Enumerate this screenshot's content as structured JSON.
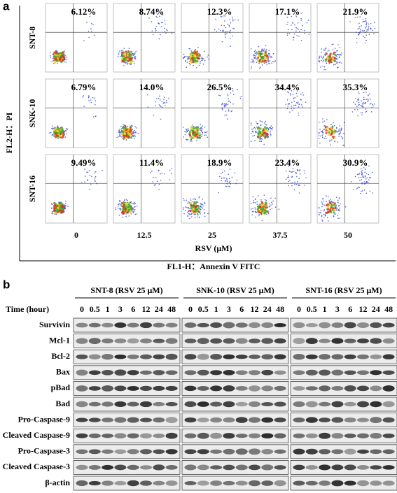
{
  "panel_a": {
    "label": "a",
    "y_axis_label": "FL2-H：PI",
    "x_axis_label": "FL1-H：Annexin V FITC",
    "concentration_label": "RSV (μM)",
    "concentrations": [
      "0",
      "12.5",
      "25",
      "37.5",
      "50"
    ],
    "rows": [
      {
        "cell_line": "SNT-8",
        "percentages": [
          "6.12%",
          "8.74%",
          "12.3%",
          "17.1%",
          "21.9%"
        ]
      },
      {
        "cell_line": "SNK-10",
        "percentages": [
          "6.79%",
          "14.0%",
          "26.5%",
          "34.4%",
          "35.3%"
        ]
      },
      {
        "cell_line": "SNT-16",
        "percentages": [
          "9.49%",
          "11.4%",
          "18.9%",
          "23.4%",
          "30.9%"
        ]
      }
    ]
  },
  "panel_b": {
    "label": "b",
    "time_label": "Time (hour)",
    "time_points": [
      "0",
      "0.5",
      "1",
      "3",
      "6",
      "12",
      "24",
      "48"
    ],
    "groups": [
      "SNT-8 (RSV 25 μM)",
      "SNK-10 (RSV 25 μM)",
      "SNT-16 (RSV 25 μM)"
    ],
    "proteins": [
      "Survivin",
      "Mcl-1",
      "Bcl-2",
      "Bax",
      "pBad",
      "Bad",
      "Pro-Caspase-9",
      "Cleaved Caspase-9",
      "Pro-Caspase-3",
      "Cleaved Caspase-3",
      "β-actin"
    ]
  }
}
